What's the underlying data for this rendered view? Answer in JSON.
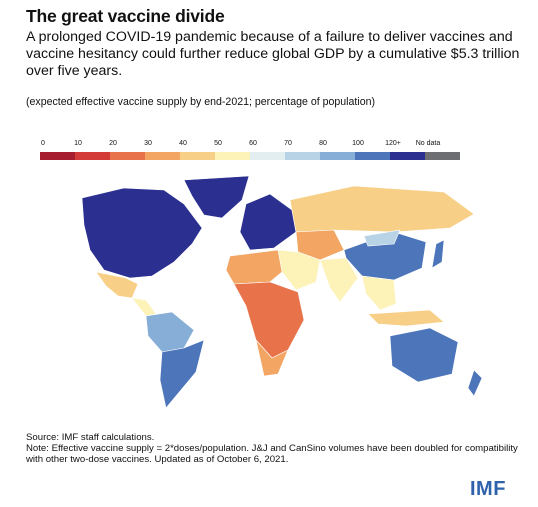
{
  "header": {
    "title": "The great vaccine divide",
    "subtitle": "A prolonged COVID-19 pandemic because of a failure to deliver vaccines and vaccine hesitancy could further reduce global GDP by a cumulative $5.3 trillion over five years.",
    "note": "(expected effective vaccine supply by end-2021; percentage of population)"
  },
  "legend": {
    "items": [
      {
        "label": "0",
        "color": "#a51d2f"
      },
      {
        "label": "10",
        "color": "#d33b38"
      },
      {
        "label": "20",
        "color": "#e8724a"
      },
      {
        "label": "30",
        "color": "#f3a563"
      },
      {
        "label": "40",
        "color": "#f8cf87"
      },
      {
        "label": "50",
        "color": "#fdf2b8"
      },
      {
        "label": "60",
        "color": "#e3eef0"
      },
      {
        "label": "70",
        "color": "#b9d3e6"
      },
      {
        "label": "80",
        "color": "#86aed6"
      },
      {
        "label": "100",
        "color": "#4d75ba"
      },
      {
        "label": "120+",
        "color": "#2b3090"
      },
      {
        "label": "No data",
        "color": "#6d6e71"
      }
    ]
  },
  "map_regions": [
    {
      "name": "canada-usa",
      "color": "#2b3090"
    },
    {
      "name": "greenland",
      "color": "#2b3090"
    },
    {
      "name": "mexico",
      "color": "#f8cf87"
    },
    {
      "name": "central-america",
      "color": "#fdf2b8"
    },
    {
      "name": "south-america-north",
      "color": "#86aed6"
    },
    {
      "name": "south-america-south",
      "color": "#4d75ba"
    },
    {
      "name": "europe",
      "color": "#2b3090"
    },
    {
      "name": "russia",
      "color": "#f8cf87"
    },
    {
      "name": "central-asia",
      "color": "#f3a563"
    },
    {
      "name": "middle-east",
      "color": "#fdf2b8"
    },
    {
      "name": "north-africa",
      "color": "#f3a563"
    },
    {
      "name": "africa",
      "color": "#e8724a"
    },
    {
      "name": "south-africa",
      "color": "#f3a563"
    },
    {
      "name": "india",
      "color": "#fdf2b8"
    },
    {
      "name": "china",
      "color": "#4d75ba"
    },
    {
      "name": "mongolia",
      "color": "#b9d3e6"
    },
    {
      "name": "southeast-asia",
      "color": "#fdf2b8"
    },
    {
      "name": "indonesia",
      "color": "#f8cf87"
    },
    {
      "name": "australia",
      "color": "#4d75ba"
    },
    {
      "name": "new-zealand",
      "color": "#4d75ba"
    },
    {
      "name": "japan",
      "color": "#4d75ba"
    }
  ],
  "footer": {
    "source": "Source: IMF staff calculations.",
    "note": "Note: Effective vaccine supply = 2*doses/population. J&J and CanSino volumes have been doubled for compatibility with other two-dose vaccines. Updated as of October 6, 2021.",
    "logo": "IMF"
  }
}
